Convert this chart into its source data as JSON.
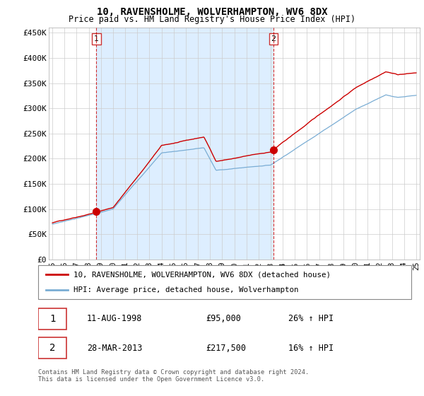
{
  "title": "10, RAVENSHOLME, WOLVERHAMPTON, WV6 8DX",
  "subtitle": "Price paid vs. HM Land Registry's House Price Index (HPI)",
  "legend_label_red": "10, RAVENSHOLME, WOLVERHAMPTON, WV6 8DX (detached house)",
  "legend_label_blue": "HPI: Average price, detached house, Wolverhampton",
  "sale1_date": "11-AUG-1998",
  "sale1_price": "£95,000",
  "sale1_hpi": "26% ↑ HPI",
  "sale2_date": "28-MAR-2013",
  "sale2_price": "£217,500",
  "sale2_hpi": "16% ↑ HPI",
  "footnote": "Contains HM Land Registry data © Crown copyright and database right 2024.\nThis data is licensed under the Open Government Licence v3.0.",
  "red_color": "#cc0000",
  "blue_color": "#7aadd4",
  "fill_color": "#ddeeff",
  "marker1_x": 1998.62,
  "marker1_y": 95000,
  "marker2_x": 2013.23,
  "marker2_y": 217500,
  "ylim": [
    0,
    460000
  ],
  "xlim_start": 1994.7,
  "xlim_end": 2025.3,
  "yticks": [
    0,
    50000,
    100000,
    150000,
    200000,
    250000,
    300000,
    350000,
    400000,
    450000
  ],
  "ytick_labels": [
    "£0",
    "£50K",
    "£100K",
    "£150K",
    "£200K",
    "£250K",
    "£300K",
    "£350K",
    "£400K",
    "£450K"
  ],
  "xticks": [
    1995,
    1996,
    1997,
    1998,
    1999,
    2000,
    2001,
    2002,
    2003,
    2004,
    2005,
    2006,
    2007,
    2008,
    2009,
    2010,
    2011,
    2012,
    2013,
    2014,
    2015,
    2016,
    2017,
    2018,
    2019,
    2020,
    2021,
    2022,
    2023,
    2024,
    2025
  ],
  "dashed_line1_x": 1998.62,
  "dashed_line2_x": 2013.23
}
